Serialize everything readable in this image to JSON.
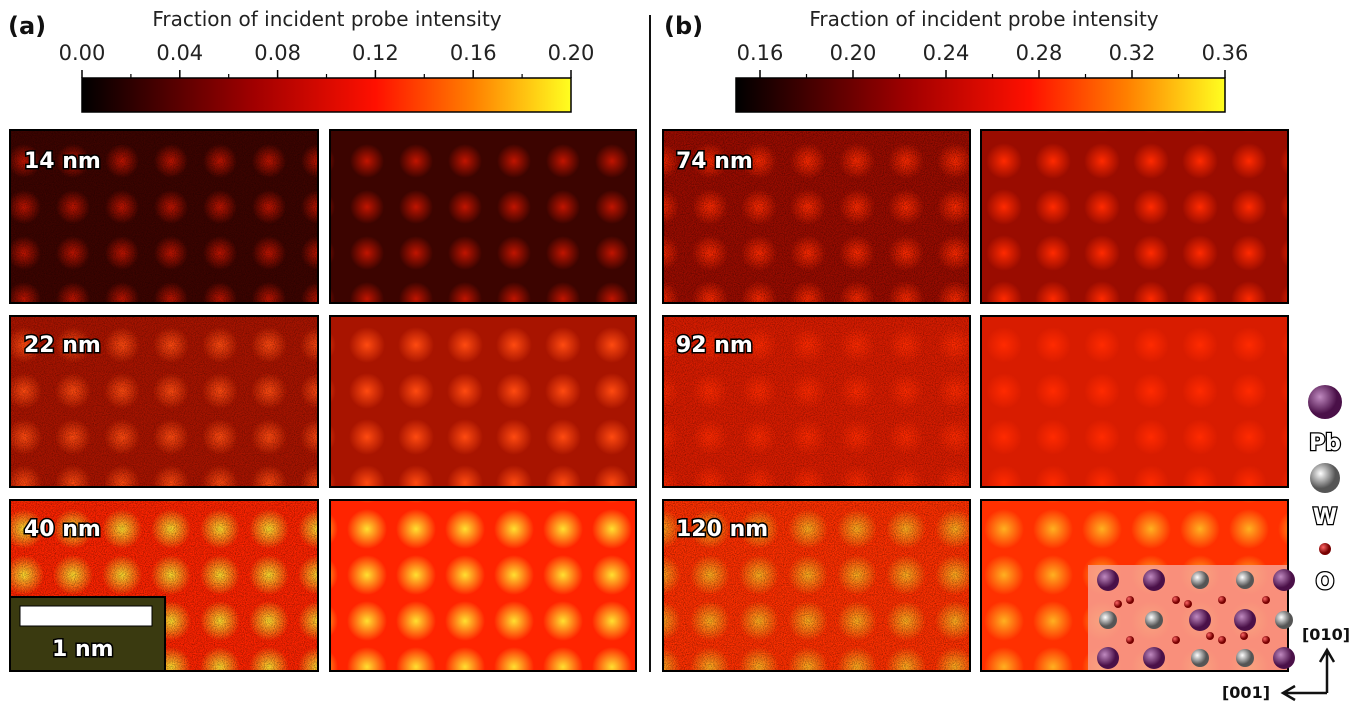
{
  "panels": [
    {
      "label": "(a)",
      "colorbar": {
        "title": "Fraction of incident probe intensity",
        "ticks": [
          "0.00",
          "0.04",
          "0.08",
          "0.12",
          "0.16",
          "0.20"
        ]
      },
      "rows": [
        "14 nm",
        "22 nm",
        "40 nm"
      ],
      "scale_bar": "1 nm"
    },
    {
      "label": "(b)",
      "colorbar": {
        "title": "Fraction of incident probe intensity",
        "ticks": [
          "0.16",
          "0.20",
          "0.24",
          "0.28",
          "0.32",
          "0.36"
        ]
      },
      "rows": [
        "74 nm",
        "92 nm",
        "120 nm"
      ]
    }
  ],
  "legend": [
    "Pb",
    "W",
    "O"
  ],
  "axes": [
    "[010]",
    "[001]"
  ]
}
